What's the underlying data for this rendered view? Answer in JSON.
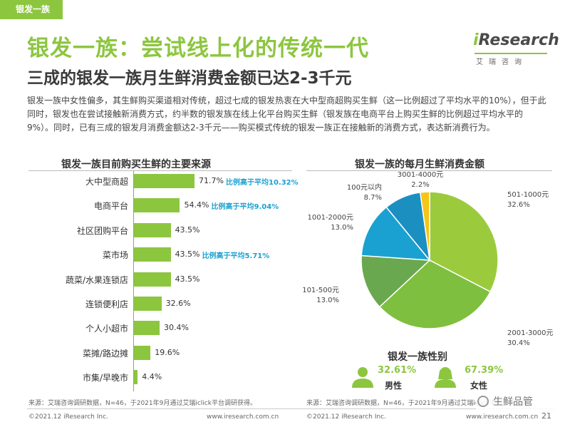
{
  "header": {
    "tag": "银发一族",
    "title": "银发一族：尝试线上化的传统一代",
    "subtitle": "三成的银发一族月生鲜消费金额已达2-3千元",
    "logo_word_prefix": "i",
    "logo_word_rest": "Research",
    "logo_cn": "艾瑞咨询",
    "body": "银发一族中女性偏多，其生鲜购买渠道相对传统，超过七成的银发热衷在大中型商超购买生鲜（这一比例超过了平均水平的10%），但于此同时，银发也在尝试接触新消费方式，约半数的银发族在线上化平台购买生鲜（银发族在电商平台上购买生鲜的比例超过平均水平的9%）。同时，已有三成的银发月消费金额达2-3千元——购买模式传统的银发一族正在接触新的消费方式，表达新消费行为。"
  },
  "colors": {
    "accent": "#8cc63f",
    "note": "#1ba1d1"
  },
  "chart_data": [
    {
      "type": "bar",
      "title": "银发一族目前购买生鲜的主要来源",
      "categories": [
        "大中型商超",
        "电商平台",
        "社区团购平台",
        "菜市场",
        "蔬菜/水果连锁店",
        "连锁便利店",
        "个人小超市",
        "菜摊/路边摊",
        "市集/早晚市"
      ],
      "values": [
        71.7,
        54.4,
        43.5,
        43.5,
        43.5,
        32.6,
        30.4,
        19.6,
        4.4
      ],
      "value_labels": [
        "71.7%",
        "54.4%",
        "43.5%",
        "43.5%",
        "43.5%",
        "32.6%",
        "30.4%",
        "19.6%",
        "4.4%"
      ],
      "annotations": [
        "比例高于平均10.32%",
        "比例高于平均9.04%",
        "",
        "比例高于平均5.71%",
        "",
        "",
        "",
        "",
        ""
      ],
      "orientation": "horizontal",
      "source": "来源：艾瑞咨询调研数据，N=46，于2021年9月通过艾瑞iclick平台调研获得。"
    },
    {
      "type": "pie",
      "title": "银发一族的每月生鲜消费金额",
      "categories": [
        "501-1000元",
        "2001-3000元",
        "101-500元",
        "1001-2000元",
        "100元以内",
        "3001-4000元"
      ],
      "values": [
        32.6,
        30.4,
        13.0,
        13.0,
        8.7,
        2.2
      ],
      "value_labels": [
        "32.6%",
        "30.4%",
        "13.0%",
        "13.0%",
        "8.7%",
        "2.2%"
      ],
      "colors": [
        "#9bcb3c",
        "#7fbf3f",
        "#6aa84f",
        "#1ba1d1",
        "#1a8fc0",
        "#f5c518"
      ],
      "source": "来源：艾瑞咨询调研数据，N=46，于2021年9月通过艾瑞iclick平台调研获得。"
    }
  ],
  "gender": {
    "title": "银发一族性别",
    "male_pct": "32.61%",
    "male_label": "男性",
    "female_pct": "67.39%",
    "female_label": "女性"
  },
  "footer": {
    "left_copyright": "©2021.12 iResearch Inc.",
    "left_site": "www.iresearch.com.cn",
    "right_copyright": "©2021.12 iResearch Inc.",
    "right_site": "www.iresearch.com.cn",
    "page": "21",
    "watermark": "生鲜品管"
  }
}
